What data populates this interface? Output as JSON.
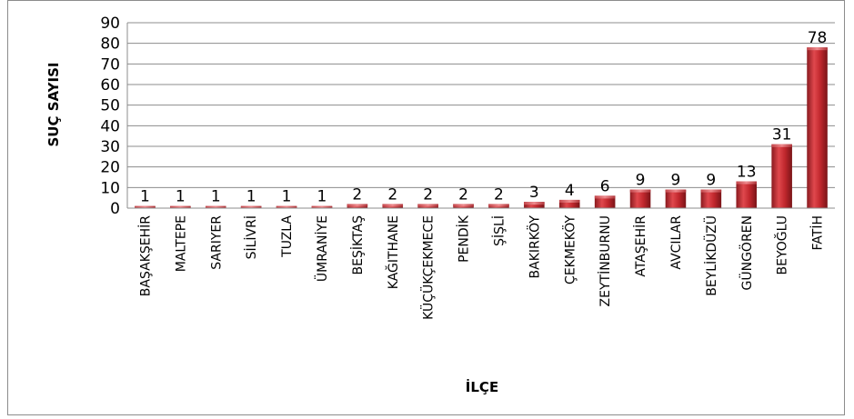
{
  "chart_data": {
    "type": "bar",
    "xlabel": "İLÇE",
    "ylabel": "SUÇ SAYISI",
    "ylim": [
      0,
      90
    ],
    "yticks": [
      0,
      10,
      20,
      30,
      40,
      50,
      60,
      70,
      80,
      90
    ],
    "grid": true,
    "legend": "none",
    "bar_color": "#c0272d",
    "categories": [
      "BAŞAKŞEHİR",
      "MALTEPE",
      "SARIYER",
      "SİLİVRİ",
      "TUZLA",
      "ÜMRANİYE",
      "BEŞİKTAŞ",
      "KAĞITHANE",
      "KÜÇÜKÇEKMECE",
      "PENDİK",
      "ŞİŞLİ",
      "BAKIRKÖY",
      "ÇEKMEKÖY",
      "ZEYTİNBURNU",
      "ATAŞEHİR",
      "AVCILAR",
      "BEYLİKDÜZÜ",
      "GÜNGÖREN",
      "BEYOĞLU",
      "FATİH"
    ],
    "values": [
      1,
      1,
      1,
      1,
      1,
      1,
      2,
      2,
      2,
      2,
      2,
      3,
      4,
      6,
      9,
      9,
      9,
      13,
      31,
      78
    ]
  }
}
